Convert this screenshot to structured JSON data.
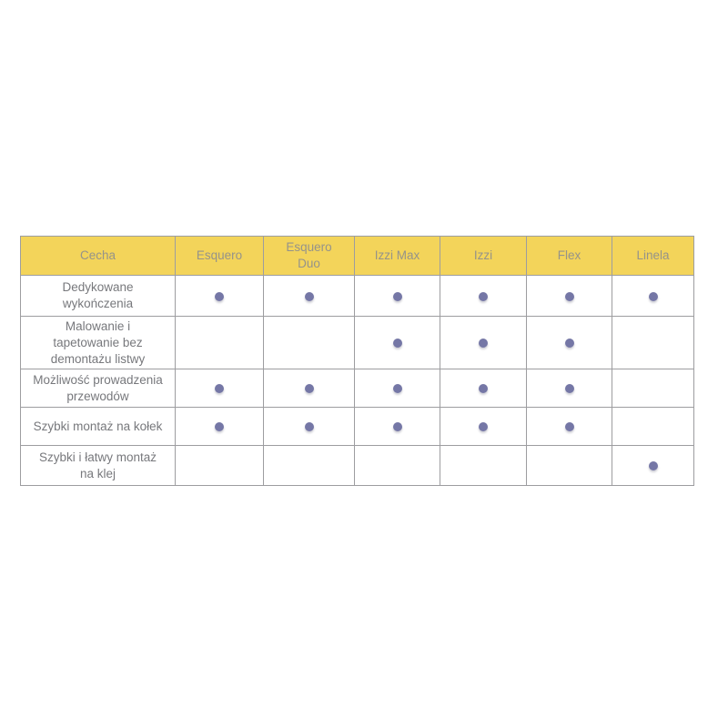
{
  "table": {
    "name": "feature-comparison-table",
    "columns": [
      "Cecha",
      "Esquero",
      "Esquero\nDuo",
      "Izzi Max",
      "Izzi",
      "Flex",
      "Linela"
    ],
    "rows": [
      {
        "feature": "Dedykowane\nwykończenia",
        "values": [
          true,
          true,
          true,
          true,
          true,
          true
        ]
      },
      {
        "feature": "Malowanie i\ntapetowanie bez\ndemontażu listwy",
        "values": [
          false,
          false,
          true,
          true,
          true,
          false
        ]
      },
      {
        "feature": "Możliwość prowadzenia\nprzewodów",
        "values": [
          true,
          true,
          true,
          true,
          true,
          false
        ]
      },
      {
        "feature": "Szybki montaż na kołek",
        "values": [
          true,
          true,
          true,
          true,
          true,
          false
        ]
      },
      {
        "feature": "Szybki i łatwy montaż\nna klej",
        "values": [
          false,
          false,
          false,
          false,
          false,
          true
        ]
      }
    ],
    "dot_meaning": "feature-available"
  },
  "colors": {
    "header_bg": "#F3D45A",
    "header_text": "#95938A",
    "body_text": "#77787C",
    "border": "#9D9DA0",
    "dot": "#7577A6",
    "page_bg": "#FFFFFF"
  }
}
